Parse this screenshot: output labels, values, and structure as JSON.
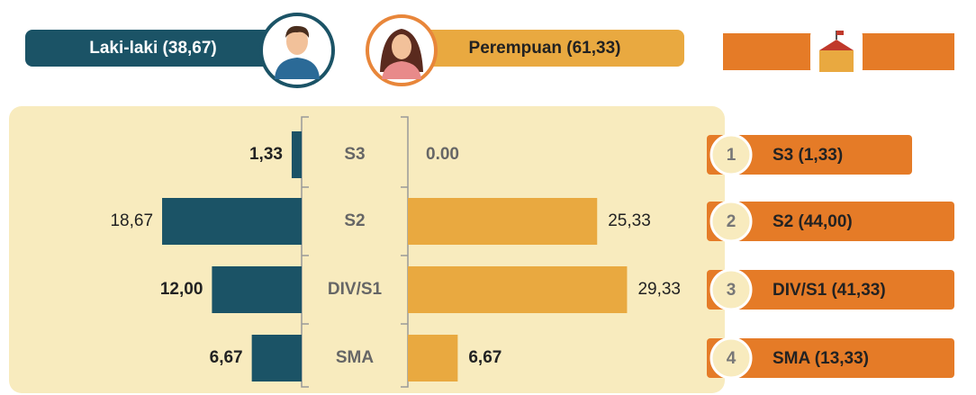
{
  "chart_data": {
    "type": "butterfly",
    "categories": [
      "S3",
      "S2",
      "DIV/S1",
      "SMA"
    ],
    "series": [
      {
        "name": "Laki-laki (38,67)",
        "color": "#1b5366",
        "values": [
          1.33,
          18.67,
          12.0,
          6.67
        ],
        "value_labels": [
          "1,33",
          "18,67",
          "12,00",
          "6,67"
        ]
      },
      {
        "name": "Perempuan (61,33)",
        "color": "#e9a940",
        "values": [
          0,
          25.33,
          29.33,
          6.67
        ],
        "value_labels": [
          "0.00",
          "25,33",
          "29,33",
          "6,67"
        ]
      }
    ],
    "totals": {
      "color": "#e57b27",
      "ranks": [
        "1",
        "2",
        "3",
        "4"
      ],
      "labels": [
        "S3 (1,33)",
        "S2 (44,00)",
        "DIV/S1 (41,33)",
        "SMA (13,33)"
      ]
    }
  }
}
